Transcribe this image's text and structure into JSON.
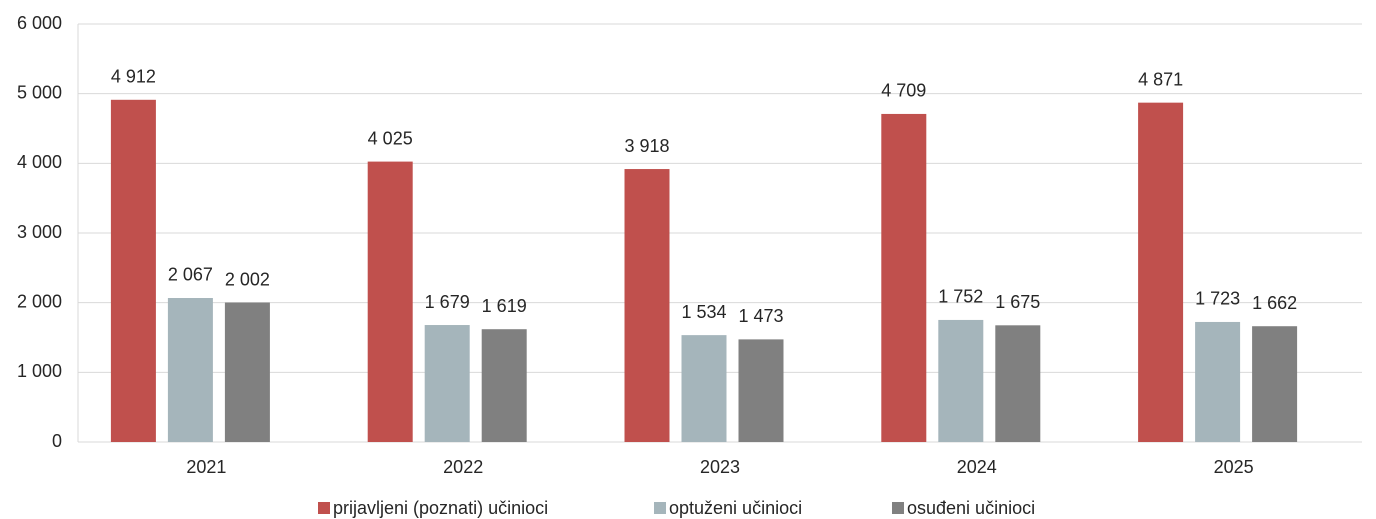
{
  "chart_data": {
    "type": "bar",
    "categories": [
      "2021",
      "2022",
      "2023",
      "2024",
      "2025"
    ],
    "series": [
      {
        "name": "prijavljeni (poznati) učinioci",
        "color": "#c0504d",
        "values": [
          4912,
          4025,
          3918,
          4709,
          4871
        ],
        "value_labels": [
          "4 912",
          "4 025",
          "3 918",
          "4 709",
          "4 871"
        ]
      },
      {
        "name": "optuženi učinioci",
        "color": "#a5b5bb",
        "values": [
          2067,
          1679,
          1534,
          1752,
          1723
        ],
        "value_labels": [
          "2 067",
          "1 679",
          "1 534",
          "1 752",
          "1 723"
        ]
      },
      {
        "name": "osuđeni učinioci",
        "color": "#808080",
        "values": [
          2002,
          1619,
          1473,
          1675,
          1662
        ],
        "value_labels": [
          "2 002",
          "1 619",
          "1 473",
          "1 675",
          "1 662"
        ]
      }
    ],
    "ylim": [
      0,
      6000
    ],
    "yticks": [
      0,
      {
        "value": 1000,
        "label": "1 000"
      },
      {
        "value": 2000,
        "label": "2 000"
      },
      {
        "value": 3000,
        "label": "3 000"
      },
      {
        "value": 4000,
        "label": "4 000"
      },
      {
        "value": 5000,
        "label": "5 000"
      },
      {
        "value": 6000,
        "label": "6 000"
      }
    ],
    "grid": true,
    "legend": "bottom"
  }
}
